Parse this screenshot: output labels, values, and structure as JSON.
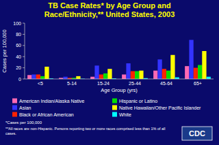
{
  "chart_data": {
    "type": "bar",
    "title": "TB Case Rates* by Age Group and\nRace/Ethnicity,** United States, 2003",
    "x_label": "Age Group (yrs)",
    "y_label": "Cases per 100,000",
    "categories": [
      "<5",
      "5-14",
      "15-24",
      "25-44",
      "45-64",
      "65+"
    ],
    "series": [
      {
        "name": "American Indian/Alaska Native",
        "color": "#FF69B4",
        "values": [
          7,
          2,
          4,
          8,
          15,
          23
        ]
      },
      {
        "name": "Asian",
        "color": "#3333FF",
        "values": [
          8,
          4,
          24,
          28,
          35,
          70
        ]
      },
      {
        "name": "Black or African American",
        "color": "#FF2200",
        "values": [
          8,
          2,
          8,
          14,
          18,
          20
        ]
      },
      {
        "name": "Hispanic or Latino",
        "color": "#00DD00",
        "values": [
          5,
          2,
          10,
          14,
          15,
          25
        ]
      },
      {
        "name": "Native Hawaiian/Other Pacific Islander",
        "color": "#FFFF00",
        "values": [
          22,
          5,
          18,
          15,
          43,
          50
        ]
      },
      {
        "name": "White",
        "color": "#00FFFF",
        "values": [
          1,
          0.5,
          1,
          1.5,
          3,
          4
        ]
      }
    ],
    "ylim": [
      0,
      100
    ],
    "yticks": [
      0,
      20,
      40,
      60,
      80,
      100
    ],
    "grid": false,
    "legend": "bottom",
    "annotations": [
      "*Cases per 100,000",
      "**All races are non-Hispanic. Persons reporting two or more races comprised less than 1% of all cases.",
      "CDC"
    ]
  }
}
